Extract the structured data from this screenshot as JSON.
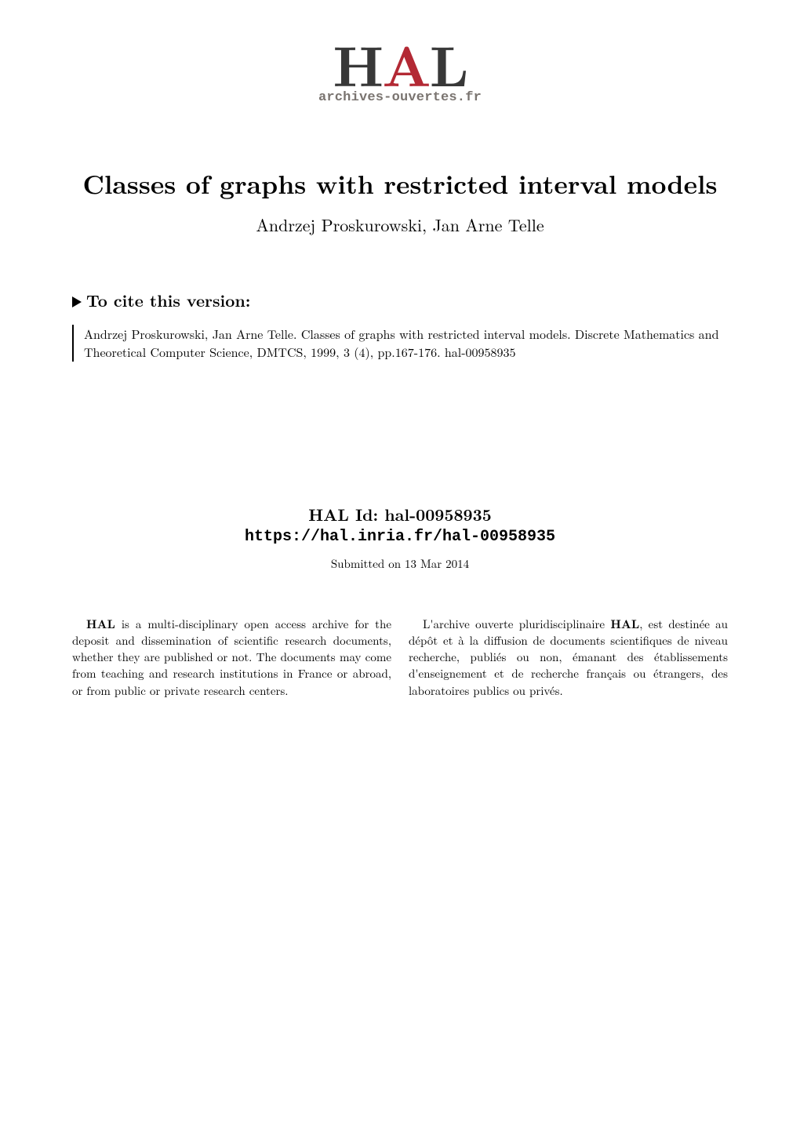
{
  "logo": {
    "text_h": "H",
    "text_a": "A",
    "text_l": "L",
    "tagline": "archives-ouvertes.fr",
    "letter_colors": {
      "h": "#383838",
      "a": "#b32934",
      "l": "#383838"
    }
  },
  "paper": {
    "title": "Classes of graphs with restricted interval models",
    "authors": "Andrzej Proskurowski, Jan Arne Telle"
  },
  "cite": {
    "heading": "To cite this version:",
    "text": "Andrzej Proskurowski, Jan Arne Telle. Classes of graphs with restricted interval models. Discrete Mathematics and Theoretical Computer Science, DMTCS, 1999, 3 (4), pp.167-176. hal-00958935"
  },
  "hal": {
    "id_label": "HAL Id: hal-00958935",
    "url": "https://hal.inria.fr/hal-00958935"
  },
  "submitted": "Submitted on 13 Mar 2014",
  "abstract": {
    "left_para1_prefix": "HAL",
    "left_para1": " is a multi-disciplinary open access archive for the deposit and dissemination of scientific research documents, whether they are published or not. The documents may come from teaching and research institutions in France or abroad, or from public or private research centers.",
    "right_para1_part1": "L'archive ouverte pluridisciplinaire ",
    "right_para1_bold": "HAL",
    "right_para1_part2": ", est destinée au dépôt et à la diffusion de documents scientifiques de niveau recherche, publiés ou non, émanant des établissements d'enseignement et de recherche français ou étrangers, des laboratoires publics ou privés."
  },
  "style": {
    "background_color": "#ffffff",
    "text_color": "#000000",
    "title_fontsize": 33,
    "authors_fontsize": 22,
    "heading_fontsize": 21,
    "body_fontsize": 15
  }
}
